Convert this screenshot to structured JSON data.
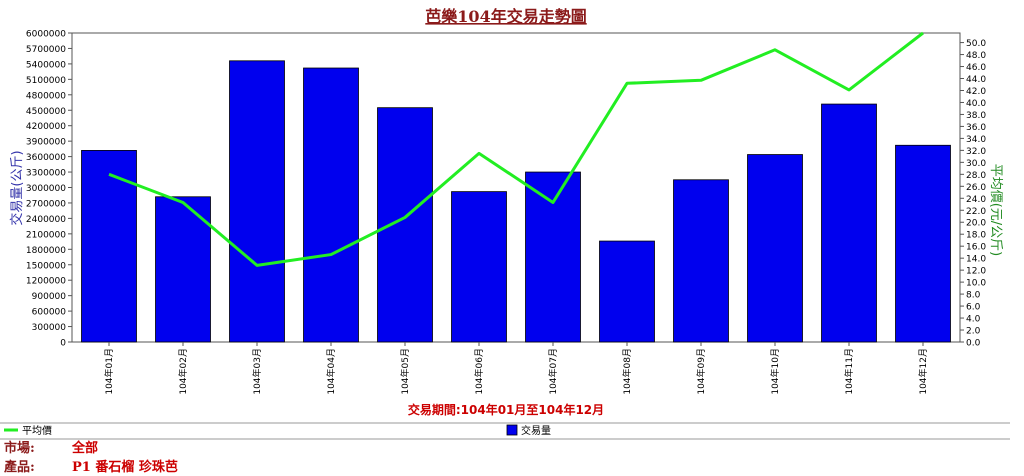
{
  "chart_data": {
    "type": "bar+line",
    "title": "芭樂104年交易走勢圖",
    "categories": [
      "104年01月",
      "104年02月",
      "104年03月",
      "104年04月",
      "104年05月",
      "104年06月",
      "104年07月",
      "104年08月",
      "104年09月",
      "104年10月",
      "104年11月",
      "104年12月"
    ],
    "series": [
      {
        "name": "交易量",
        "type": "bar",
        "axis": "left",
        "color": "#0000ee",
        "values": [
          3720000,
          2820000,
          5460000,
          5320000,
          4550000,
          2920000,
          3300000,
          1960000,
          3150000,
          3640000,
          4620000,
          3820000
        ]
      },
      {
        "name": "平均價",
        "type": "line",
        "axis": "right",
        "color": "#22ee22",
        "values": [
          28.0,
          23.3,
          12.8,
          14.6,
          20.8,
          31.5,
          23.3,
          43.2,
          43.7,
          48.8,
          42.1,
          51.6
        ]
      }
    ],
    "y_left": {
      "label": "交易量(公斤)",
      "min": 0,
      "max": 6000000,
      "step": 300000
    },
    "y_right": {
      "label": "平均價(元/公斤)",
      "min": 0,
      "max": 51.6,
      "step": 2,
      "tick_max": 50
    },
    "xlabel": "交易期間:104年01月至104年12月",
    "legend": [
      "平均價",
      "交易量"
    ]
  },
  "footer": [
    {
      "label": "市場:",
      "value": "全部"
    },
    {
      "label": "產品:",
      "value": "P1 番石榴 珍珠芭"
    }
  ],
  "colors": {
    "title": "#8b1a1a",
    "ylabel_left": "#3333aa",
    "ylabel_right": "#228b22",
    "xlabel": "#cc0000"
  }
}
